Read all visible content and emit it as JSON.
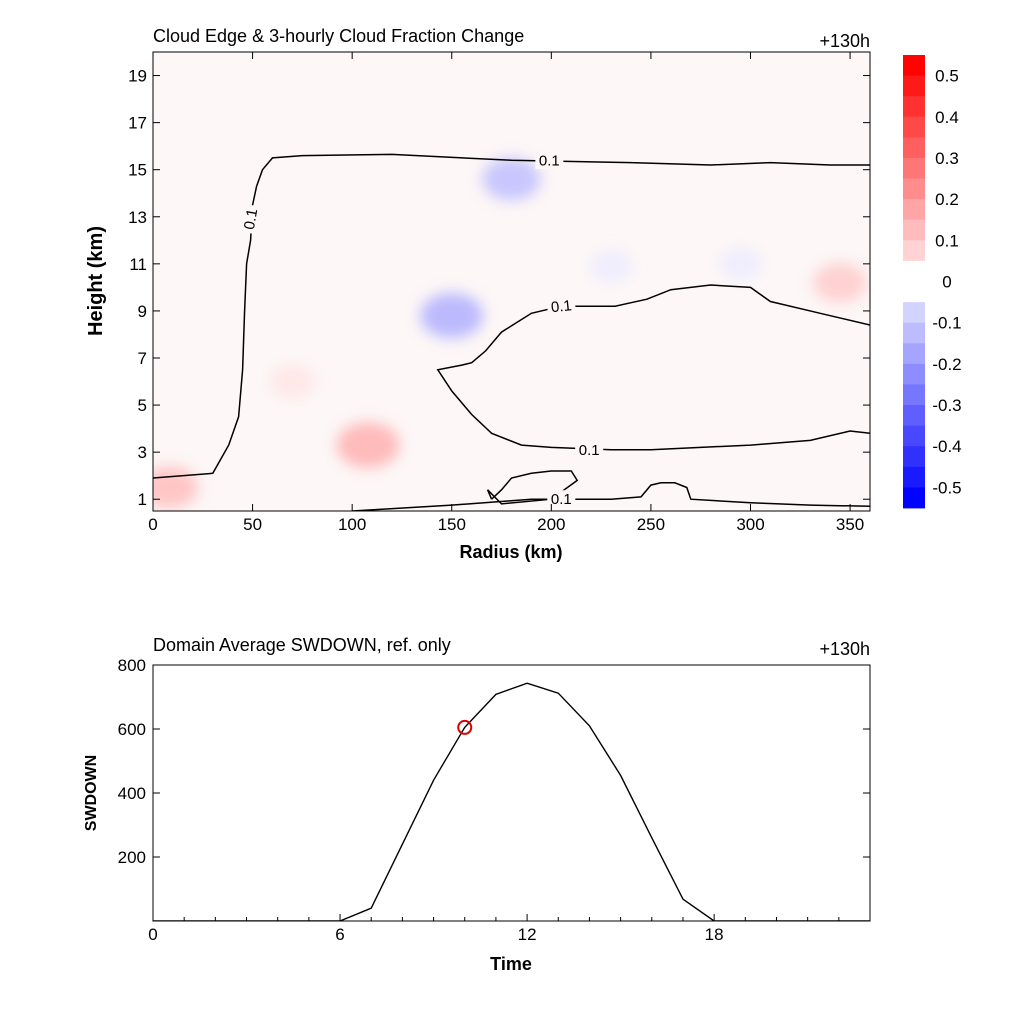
{
  "chart_data": [
    {
      "type": "heatmap",
      "title": "Cloud Edge & 3-hourly Cloud Fraction Change",
      "time_label": "+130h",
      "xlabel": "Radius (km)",
      "ylabel": "Height (km)",
      "xlim": [
        0,
        360
      ],
      "ylim": [
        0.5,
        20
      ],
      "xticks": [
        "0",
        "50",
        "100",
        "150",
        "200",
        "250",
        "300",
        "350"
      ],
      "yticks": [
        "1",
        "3",
        "5",
        "7",
        "9",
        "11",
        "13",
        "15",
        "17",
        "19"
      ],
      "colorbar": {
        "labels": [
          "0.5",
          "0.4",
          "0.3",
          "0.2",
          "0.1",
          "0",
          "-0.1",
          "-0.2",
          "-0.3",
          "-0.4",
          "-0.5"
        ],
        "min": -0.55,
        "max": 0.55,
        "low_color": "#0000ff",
        "high_color": "#ff0000",
        "mid_color": "#ffffff"
      },
      "contour_labels": [
        "0.1",
        "0.1",
        "0.1",
        "0.1",
        "0.1"
      ],
      "contour_level": 0.1,
      "fields": [
        {
          "radius": 108,
          "height": 3.3,
          "value": 0.12
        },
        {
          "radius": 8,
          "height": 1.5,
          "value": 0.1
        },
        {
          "radius": 345,
          "height": 10.2,
          "value": 0.08
        },
        {
          "radius": 70,
          "height": 6.0,
          "value": 0.04
        },
        {
          "radius": 180,
          "height": 14.6,
          "value": -0.1
        },
        {
          "radius": 150,
          "height": 8.8,
          "value": -0.12
        },
        {
          "radius": 230,
          "height": 10.9,
          "value": -0.03
        },
        {
          "radius": 295,
          "height": 11.0,
          "value": -0.03
        }
      ],
      "contours": [
        {
          "radius": [
            0,
            30,
            38,
            43,
            45,
            46,
            47,
            49,
            50,
            52,
            55,
            60,
            75,
            120,
            180,
            240,
            280,
            310,
            340,
            360
          ],
          "height": [
            1.9,
            2.1,
            3.3,
            4.5,
            6.5,
            9.0,
            11.0,
            12.0,
            13.5,
            14.3,
            15.0,
            15.5,
            15.6,
            15.65,
            15.4,
            15.3,
            15.2,
            15.3,
            15.2,
            15.2
          ]
        },
        {
          "radius": [
            360,
            335,
            310,
            300,
            280,
            260,
            248,
            232,
            205,
            190,
            175,
            167,
            160,
            155,
            143,
            150,
            160,
            170,
            185,
            200,
            230,
            250,
            275,
            300,
            330,
            350,
            360
          ],
          "height": [
            8.4,
            8.9,
            9.4,
            10.0,
            10.1,
            9.9,
            9.5,
            9.2,
            9.2,
            8.9,
            8.1,
            7.3,
            6.8,
            6.7,
            6.5,
            5.6,
            4.6,
            3.8,
            3.3,
            3.2,
            3.1,
            3.1,
            3.2,
            3.3,
            3.5,
            3.9,
            3.8
          ]
        },
        {
          "radius": [
            170,
            175,
            180,
            190,
            200,
            210,
            213,
            200,
            175,
            168,
            170
          ],
          "height": [
            1.0,
            1.4,
            1.9,
            2.1,
            2.2,
            2.2,
            1.8,
            1.0,
            0.8,
            1.4,
            1.0
          ]
        },
        {
          "radius": [
            100,
            150,
            190,
            200
          ],
          "height": [
            0.5,
            0.75,
            1.0,
            1.0
          ]
        },
        {
          "radius": [
            200,
            230,
            245,
            250,
            255,
            262,
            268,
            270,
            300,
            330,
            360
          ],
          "height": [
            1.0,
            1.0,
            1.1,
            1.6,
            1.7,
            1.7,
            1.5,
            1.0,
            0.85,
            0.75,
            0.7
          ]
        }
      ]
    },
    {
      "type": "line",
      "title": "Domain Average SWDOWN, ref. only",
      "time_label": "+130h",
      "xlabel": "Time",
      "ylabel": "SWDOWN",
      "xlim": [
        0,
        23
      ],
      "ylim": [
        0,
        800
      ],
      "xticks": [
        "0",
        "6",
        "12",
        "18"
      ],
      "yticks": [
        "200",
        "400",
        "600",
        "800"
      ],
      "x": [
        0,
        1,
        2,
        3,
        4,
        5,
        6,
        7,
        8,
        9,
        10,
        11,
        12,
        13,
        14,
        15,
        16,
        17,
        18,
        19,
        20,
        21,
        22,
        23
      ],
      "values": [
        0,
        0,
        0,
        0,
        0,
        0,
        0,
        40,
        240,
        440,
        605,
        708,
        743,
        712,
        610,
        455,
        260,
        68,
        0,
        0,
        0,
        0,
        0,
        0
      ],
      "marker": {
        "x": 10,
        "y": 605,
        "color": "#e00000"
      }
    }
  ]
}
